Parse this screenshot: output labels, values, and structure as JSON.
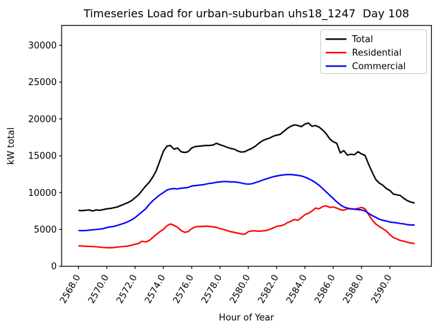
{
  "chart_data": {
    "type": "line",
    "title": "Timeseries Load for urban-suburban uhs18_1247  Day 108",
    "xlabel": "Hour of Year",
    "ylabel": "kW total",
    "grid": false,
    "legend": {
      "position": "upper right",
      "entries": [
        "Total",
        "Residential",
        "Commercial"
      ]
    },
    "x_start": 2568.0,
    "x_step": 0.25,
    "x_end": 2591.75,
    "xlim": [
      2566.81,
      2592.94
    ],
    "ylim": [
      0,
      32700
    ],
    "xticks": {
      "values": [
        2568,
        2570,
        2572,
        2574,
        2576,
        2578,
        2580,
        2582,
        2584,
        2586,
        2588,
        2590
      ],
      "labels": [
        "2568.0",
        "2570.0",
        "2572.0",
        "2574.0",
        "2576.0",
        "2578.0",
        "2580.0",
        "2582.0",
        "2584.0",
        "2586.0",
        "2588.0",
        "2590.0"
      ]
    },
    "yticks": {
      "values": [
        0,
        5000,
        10000,
        15000,
        20000,
        25000,
        30000
      ],
      "labels": [
        "0",
        "5000",
        "10000",
        "15000",
        "20000",
        "25000",
        "30000"
      ]
    },
    "series": [
      {
        "name": "Total",
        "color": "#000000",
        "values": [
          7600,
          7550,
          7600,
          7650,
          7500,
          7650,
          7600,
          7700,
          7800,
          7850,
          7950,
          8050,
          8250,
          8450,
          8650,
          8900,
          9300,
          9700,
          10300,
          10900,
          11400,
          12100,
          13000,
          14300,
          15600,
          16300,
          16400,
          15900,
          16050,
          15550,
          15450,
          15550,
          16050,
          16250,
          16300,
          16350,
          16400,
          16400,
          16450,
          16700,
          16500,
          16350,
          16150,
          16000,
          15900,
          15650,
          15500,
          15550,
          15800,
          16000,
          16300,
          16700,
          17050,
          17250,
          17400,
          17650,
          17800,
          17900,
          18300,
          18700,
          19000,
          19200,
          19100,
          18950,
          19300,
          19450,
          19000,
          19100,
          18900,
          18500,
          18000,
          17300,
          16900,
          16700,
          15400,
          15700,
          15100,
          15200,
          15150,
          15550,
          15250,
          15050,
          13850,
          12800,
          11800,
          11300,
          11000,
          10550,
          10300,
          9800,
          9700,
          9600,
          9200,
          8900,
          8700,
          8600
        ]
      },
      {
        "name": "Residential",
        "color": "#ff0000",
        "values": [
          2780,
          2750,
          2720,
          2700,
          2680,
          2650,
          2600,
          2560,
          2530,
          2520,
          2550,
          2600,
          2650,
          2700,
          2750,
          2850,
          3000,
          3100,
          3400,
          3300,
          3500,
          3900,
          4300,
          4700,
          5000,
          5500,
          5750,
          5550,
          5300,
          4850,
          4600,
          4700,
          5100,
          5350,
          5400,
          5400,
          5450,
          5400,
          5350,
          5300,
          5100,
          5000,
          4850,
          4700,
          4600,
          4500,
          4400,
          4350,
          4700,
          4800,
          4800,
          4750,
          4800,
          4850,
          5000,
          5200,
          5400,
          5500,
          5600,
          5900,
          6100,
          6350,
          6250,
          6600,
          7000,
          7200,
          7500,
          7900,
          7800,
          8100,
          8200,
          8000,
          8050,
          7900,
          7700,
          7600,
          7800,
          7800,
          7750,
          7850,
          8000,
          7800,
          7000,
          6300,
          5750,
          5400,
          5100,
          4800,
          4300,
          3900,
          3700,
          3500,
          3400,
          3250,
          3150,
          3080
        ]
      },
      {
        "name": "Commercial",
        "color": "#0000ff",
        "values": [
          4860,
          4830,
          4850,
          4900,
          4950,
          5000,
          5050,
          5100,
          5250,
          5350,
          5400,
          5550,
          5700,
          5850,
          6050,
          6300,
          6600,
          7000,
          7400,
          7800,
          8400,
          8900,
          9300,
          9700,
          10000,
          10350,
          10500,
          10550,
          10500,
          10600,
          10650,
          10700,
          10900,
          10950,
          11000,
          11050,
          11150,
          11250,
          11300,
          11400,
          11450,
          11500,
          11500,
          11450,
          11450,
          11400,
          11300,
          11200,
          11150,
          11200,
          11350,
          11500,
          11700,
          11850,
          12000,
          12150,
          12250,
          12350,
          12400,
          12450,
          12450,
          12400,
          12350,
          12250,
          12100,
          11900,
          11650,
          11350,
          11000,
          10550,
          10100,
          9650,
          9200,
          8750,
          8350,
          8050,
          7900,
          7800,
          7750,
          7700,
          7650,
          7500,
          7200,
          6900,
          6650,
          6400,
          6250,
          6150,
          6000,
          5950,
          5900,
          5800,
          5750,
          5650,
          5600,
          5600
        ]
      }
    ]
  }
}
